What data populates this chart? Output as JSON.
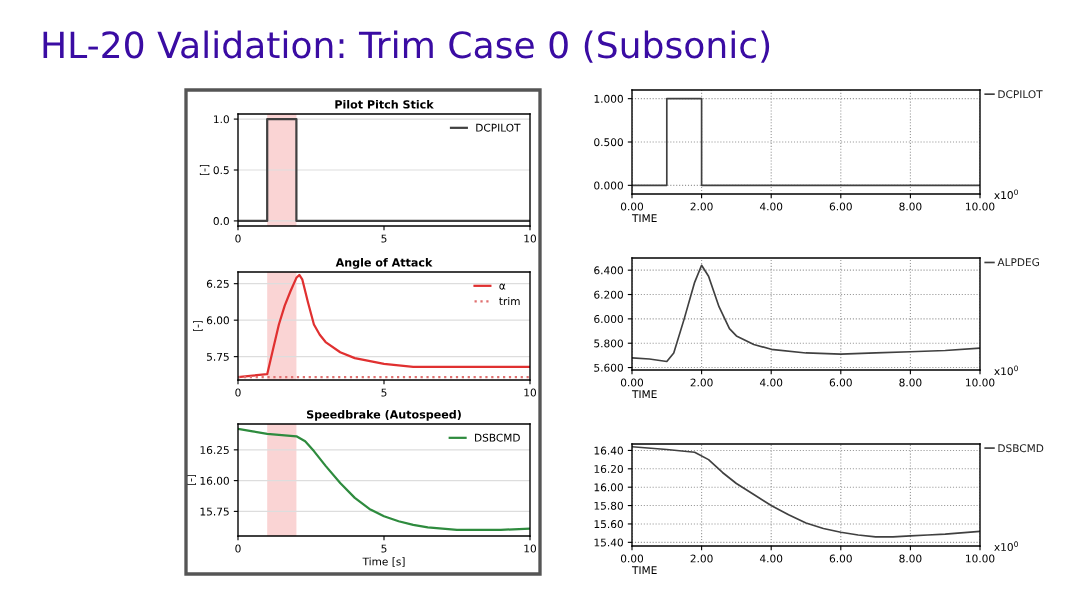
{
  "chart_data": [
    {
      "type": "line",
      "title": "Pilot Pitch Stick",
      "ylabel": "[-]",
      "annotations": [
        "HL-20 Validation: Trim Case 0 (Subsonic)"
      ],
      "series": [
        {
          "name": "DCPILOT",
          "color": "#404040",
          "x": [
            0,
            1,
            1,
            2,
            2,
            10
          ],
          "values": [
            0,
            0,
            1,
            1,
            0,
            0
          ]
        }
      ],
      "bands": [
        {
          "axis": "x",
          "from": 1,
          "to": 2,
          "color": "#f9c9c9"
        }
      ],
      "xlim": [
        0,
        10
      ],
      "xticks": [
        0,
        5,
        10
      ],
      "ylim": [
        -0.05,
        1.05
      ],
      "yticks": [
        {
          "value": 0,
          "label": "0.0"
        },
        {
          "value": 0.5,
          "label": "0.5"
        },
        {
          "value": 1,
          "label": "1.0"
        }
      ],
      "grid": "y",
      "legend": "top right"
    },
    {
      "type": "line",
      "title": "Angle of Attack",
      "ylabel": "[-]",
      "series": [
        {
          "name": "α",
          "color": "#e03030",
          "x": [
            0,
            0.5,
            1,
            1.2,
            1.4,
            1.6,
            1.8,
            2.0,
            2.1,
            2.2,
            2.4,
            2.6,
            2.8,
            3.0,
            3.5,
            4,
            5,
            6,
            7,
            8,
            9,
            10
          ],
          "values": [
            5.61,
            5.62,
            5.63,
            5.8,
            5.97,
            6.1,
            6.2,
            6.29,
            6.31,
            6.28,
            6.12,
            5.97,
            5.9,
            5.85,
            5.78,
            5.74,
            5.7,
            5.68,
            5.68,
            5.68,
            5.68,
            5.68
          ]
        },
        {
          "name": "trim",
          "color": "#e07070",
          "line_style": "dotted",
          "x": [
            0,
            10
          ],
          "values": [
            5.61,
            5.61
          ]
        }
      ],
      "bands": [
        {
          "axis": "x",
          "from": 1,
          "to": 2,
          "color": "#f9c9c9"
        }
      ],
      "xlim": [
        0,
        10
      ],
      "xticks": [
        0,
        5,
        10
      ],
      "ylim": [
        5.59,
        6.33
      ],
      "yticks": [
        5.75,
        {
          "value": 6.0,
          "label": "6.00"
        },
        6.25
      ],
      "grid": "y",
      "legend": "top right"
    },
    {
      "type": "line",
      "title": "Speedbrake (Autospeed)",
      "xlabel": "Time [s]",
      "ylabel": "[-]",
      "series": [
        {
          "name": "DSBCMD",
          "color": "#2e8b3e",
          "x": [
            0,
            0.5,
            1,
            1.5,
            2,
            2.3,
            2.6,
            3,
            3.5,
            4,
            4.5,
            5,
            5.5,
            6,
            6.5,
            7,
            7.5,
            8,
            9,
            10
          ],
          "values": [
            16.42,
            16.4,
            16.38,
            16.37,
            16.36,
            16.32,
            16.24,
            16.12,
            15.98,
            15.86,
            15.77,
            15.71,
            15.67,
            15.64,
            15.62,
            15.61,
            15.6,
            15.6,
            15.6,
            15.61
          ]
        }
      ],
      "bands": [
        {
          "axis": "x",
          "from": 1,
          "to": 2,
          "color": "#f9c9c9"
        }
      ],
      "xlim": [
        0,
        10
      ],
      "xticks": [
        0,
        5,
        10
      ],
      "ylim": [
        15.55,
        16.46
      ],
      "yticks": [
        15.75,
        {
          "value": 16.0,
          "label": "16.00"
        },
        16.25
      ],
      "grid": "y",
      "legend": "top right"
    },
    {
      "type": "line",
      "xlabel": "TIME",
      "annotations": [
        "x10$^{0}$"
      ],
      "series": [
        {
          "name": "DCPILOT",
          "color": "#404040",
          "x": [
            0,
            1,
            1,
            2,
            2,
            10
          ],
          "values": [
            0,
            0,
            1,
            1,
            0,
            0
          ]
        }
      ],
      "xlim": [
        0,
        10
      ],
      "xticks": [
        {
          "value": 0,
          "label": "0.00"
        },
        {
          "value": 2,
          "label": "2.00"
        },
        {
          "value": 4,
          "label": "4.00"
        },
        {
          "value": 6,
          "label": "6.00"
        },
        {
          "value": 8,
          "label": "8.00"
        },
        {
          "value": 10,
          "label": "10.00"
        }
      ],
      "ylim": [
        -0.1,
        1.1
      ],
      "yticks": [
        {
          "value": 0,
          "label": "0.000"
        },
        {
          "value": 0.5,
          "label": "0.500"
        },
        {
          "value": 1,
          "label": "1.000"
        }
      ],
      "grid": true,
      "legend": "right"
    },
    {
      "type": "line",
      "xlabel": "TIME",
      "annotations": [
        "x10$^{0}$"
      ],
      "series": [
        {
          "name": "ALPDEG",
          "color": "#404040",
          "x": [
            0,
            0.5,
            1,
            1.2,
            1.5,
            1.8,
            2.0,
            2.2,
            2.5,
            2.8,
            3,
            3.5,
            4,
            5,
            6,
            7,
            8,
            9,
            10
          ],
          "values": [
            5.68,
            5.67,
            5.65,
            5.72,
            6.0,
            6.3,
            6.44,
            6.35,
            6.1,
            5.92,
            5.86,
            5.79,
            5.75,
            5.72,
            5.71,
            5.72,
            5.73,
            5.74,
            5.76
          ]
        }
      ],
      "xlim": [
        0,
        10
      ],
      "xticks": [
        {
          "value": 0,
          "label": "0.00"
        },
        {
          "value": 2,
          "label": "2.00"
        },
        {
          "value": 4,
          "label": "4.00"
        },
        {
          "value": 6,
          "label": "6.00"
        },
        {
          "value": 8,
          "label": "8.00"
        },
        {
          "value": 10,
          "label": "10.00"
        }
      ],
      "ylim": [
        5.58,
        6.5
      ],
      "yticks": [
        {
          "value": 5.6,
          "label": "5.600"
        },
        {
          "value": 5.8,
          "label": "5.800"
        },
        {
          "value": 6.0,
          "label": "6.000"
        },
        {
          "value": 6.2,
          "label": "6.200"
        },
        {
          "value": 6.4,
          "label": "6.400"
        }
      ],
      "grid": true,
      "legend": "right"
    },
    {
      "type": "line",
      "xlabel": "TIME",
      "annotations": [
        "x10$^{0}$"
      ],
      "series": [
        {
          "name": "DSBCMD",
          "color": "#404040",
          "x": [
            0,
            1,
            1.8,
            2.2,
            2.6,
            3,
            3.5,
            4,
            4.5,
            5,
            5.5,
            6,
            6.5,
            7,
            7.5,
            8,
            8.5,
            9,
            10
          ],
          "values": [
            16.44,
            16.41,
            16.38,
            16.3,
            16.16,
            16.04,
            15.92,
            15.8,
            15.7,
            15.61,
            15.55,
            15.51,
            15.48,
            15.46,
            15.46,
            15.47,
            15.48,
            15.49,
            15.52
          ]
        }
      ],
      "xlim": [
        0,
        10
      ],
      "xticks": [
        {
          "value": 0,
          "label": "0.00"
        },
        {
          "value": 2,
          "label": "2.00"
        },
        {
          "value": 4,
          "label": "4.00"
        },
        {
          "value": 6,
          "label": "6.00"
        },
        {
          "value": 8,
          "label": "8.00"
        },
        {
          "value": 10,
          "label": "10.00"
        }
      ],
      "ylim": [
        15.36,
        16.47
      ],
      "yticks": [
        {
          "value": 15.4,
          "label": "15.40"
        },
        {
          "value": 15.6,
          "label": "15.60"
        },
        {
          "value": 15.8,
          "label": "15.80"
        },
        {
          "value": 16.0,
          "label": "16.00"
        },
        {
          "value": 16.2,
          "label": "16.20"
        },
        {
          "value": 16.4,
          "label": "16.40"
        }
      ],
      "grid": true,
      "legend": "right"
    }
  ]
}
